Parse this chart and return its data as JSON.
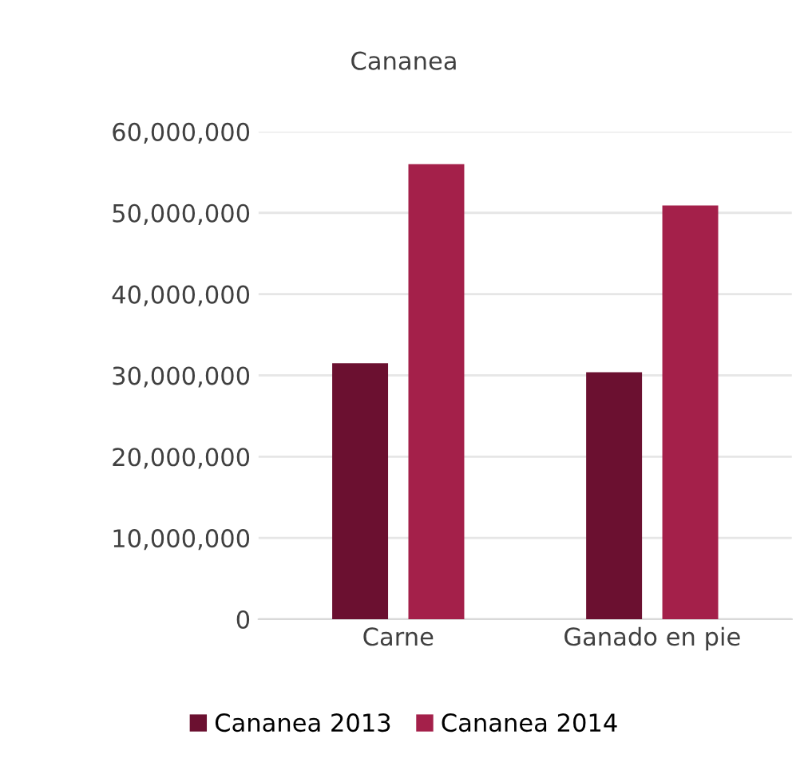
{
  "chart_data": {
    "type": "bar",
    "title": "Cananea",
    "categories": [
      "Carne",
      "Ganado en pie"
    ],
    "series": [
      {
        "name": "Cananea 2013",
        "color": "#6b1030",
        "values": [
          31500000,
          30400000
        ]
      },
      {
        "name": "Cananea 2014",
        "color": "#a4204a",
        "values": [
          56000000,
          50900000
        ]
      }
    ],
    "ylim": [
      0,
      60000000
    ],
    "yticks": [
      {
        "value": 0,
        "label": "0"
      },
      {
        "value": 10000000,
        "label": "10,000,000"
      },
      {
        "value": 20000000,
        "label": "20,000,000"
      },
      {
        "value": 30000000,
        "label": "30,000,000"
      },
      {
        "value": 40000000,
        "label": "40,000,000"
      },
      {
        "value": 50000000,
        "label": "50,000,000"
      },
      {
        "value": 60000000,
        "label": "60,000,000"
      }
    ],
    "grid": "y",
    "legend": "bottom"
  }
}
